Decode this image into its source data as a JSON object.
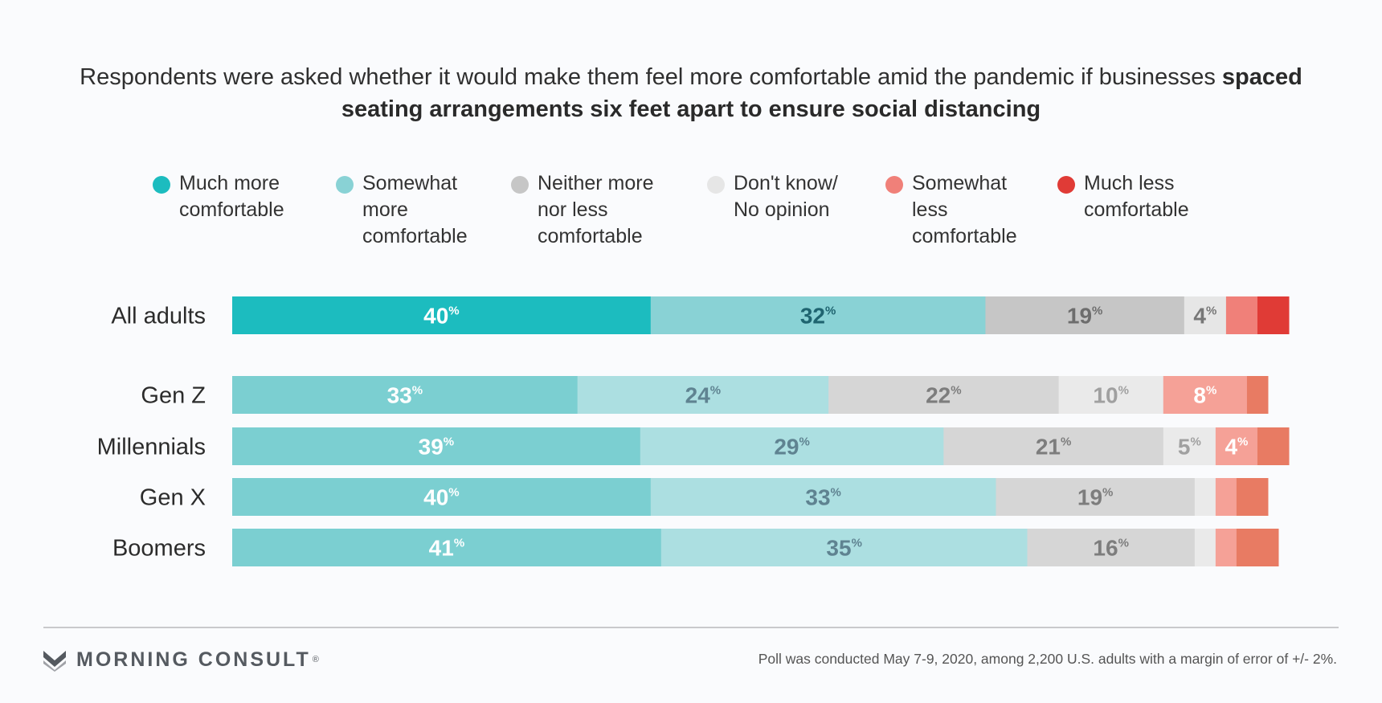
{
  "title": {
    "prefix": "Respondents were asked whether it would make them feel more comfortable amid the pandemic if businesses",
    "bold": "spaced seating arrangements six feet apart to ensure social distancing"
  },
  "legend": [
    {
      "label": "Much more\ncomfortable",
      "color": "#1cbcbf"
    },
    {
      "label": "Somewhat\nmore\ncomfortable",
      "color": "#89d2d5"
    },
    {
      "label": "Neither more\nnor less\ncomfortable",
      "color": "#c6c6c6"
    },
    {
      "label": "Don't know/\nNo opinion",
      "color": "#e6e6e6"
    },
    {
      "label": "Somewhat\nless\ncomfortable",
      "color": "#f08079"
    },
    {
      "label": "Much less\ncomfortable",
      "color": "#e03b36"
    }
  ],
  "chart_data": {
    "type": "bar",
    "orientation": "horizontal",
    "stacked": true,
    "xlim": [
      0,
      100
    ],
    "value_suffix": "%",
    "categories": [
      "All adults",
      "Gen Z",
      "Millennials",
      "Gen X",
      "Boomers"
    ],
    "series": [
      {
        "name": "Much more comfortable",
        "values": [
          40,
          33,
          39,
          40,
          41
        ]
      },
      {
        "name": "Somewhat more comfortable",
        "values": [
          32,
          24,
          29,
          33,
          35
        ]
      },
      {
        "name": "Neither more nor less comfortable",
        "values": [
          19,
          22,
          21,
          19,
          16
        ]
      },
      {
        "name": "Don't know/ No opinion",
        "values": [
          4,
          10,
          5,
          2,
          2
        ]
      },
      {
        "name": "Somewhat less comfortable",
        "values": [
          3,
          8,
          4,
          2,
          2
        ]
      },
      {
        "name": "Much less comfortable",
        "values": [
          3,
          2,
          3,
          3,
          4
        ]
      }
    ],
    "labeled_series": [
      [
        true,
        true,
        true,
        true,
        false,
        false
      ],
      [
        true,
        true,
        true,
        true,
        true,
        false
      ],
      [
        true,
        true,
        true,
        true,
        true,
        false
      ],
      [
        true,
        true,
        true,
        false,
        false,
        false
      ],
      [
        true,
        true,
        true,
        false,
        false,
        false
      ]
    ],
    "row_colors": {
      "all_adults": [
        "#1cbcbf",
        "#89d2d5",
        "#c6c6c6",
        "#e6e6e6",
        "#f08079",
        "#e03b36"
      ],
      "subgroups": [
        "#7bcfd1",
        "#acdfe1",
        "#d6d6d6",
        "#eaeaea",
        "#f5a197",
        "#e87b63"
      ]
    },
    "label_colors": {
      "all_adults": [
        "#ffffff",
        "#1f6470",
        "#6d6d6d",
        "#777777",
        "#ffffff",
        "#ffffff"
      ],
      "subgroups": [
        "#ffffff",
        "#5f8391",
        "#7d7d7d",
        "#a0a0a0",
        "#ffffff",
        "#ffffff"
      ]
    }
  },
  "footer": {
    "brand": "MORNING CONSULT",
    "brand_mark": "®",
    "source": "Poll was conducted May 7-9, 2020, among 2,200 U.S. adults with a margin of error of +/- 2%."
  }
}
